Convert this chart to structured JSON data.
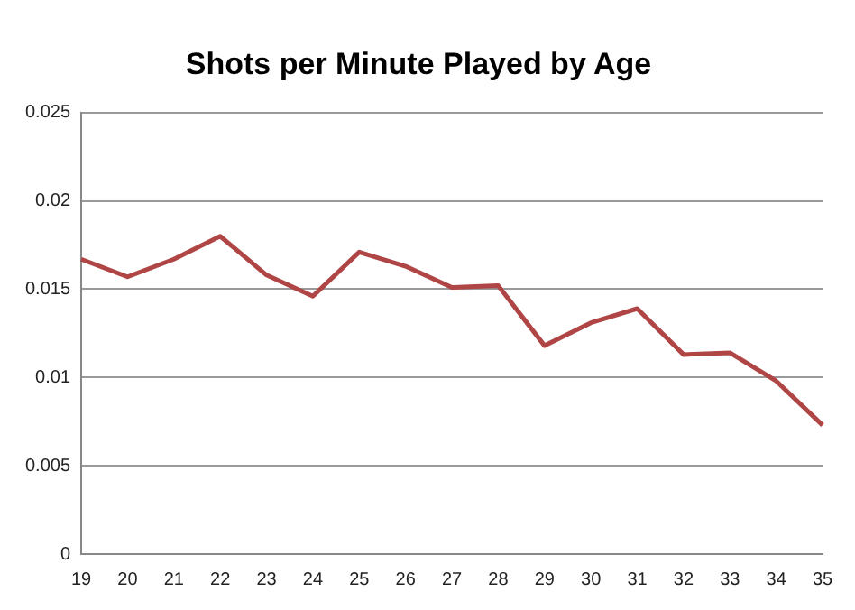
{
  "chart_data": {
    "type": "line",
    "title": "Shots per Minute Played by Age",
    "categories": [
      "19",
      "20",
      "21",
      "22",
      "23",
      "24",
      "25",
      "26",
      "27",
      "28",
      "29",
      "30",
      "31",
      "32",
      "33",
      "34",
      "35"
    ],
    "series": [
      {
        "color": "#b04545",
        "values": [
          0.0167,
          0.0157,
          0.0167,
          0.018,
          0.0158,
          0.0146,
          0.0171,
          0.0163,
          0.0151,
          0.0152,
          0.0118,
          0.0131,
          0.0139,
          0.0113,
          0.0114,
          0.0098,
          0.0073
        ]
      }
    ],
    "ylim": [
      0,
      0.025
    ],
    "yticks": [
      0,
      0.005,
      0.01,
      0.015,
      0.02,
      0.025
    ],
    "grid": "y",
    "legend": false,
    "marker": "none",
    "line_style": "solid"
  }
}
